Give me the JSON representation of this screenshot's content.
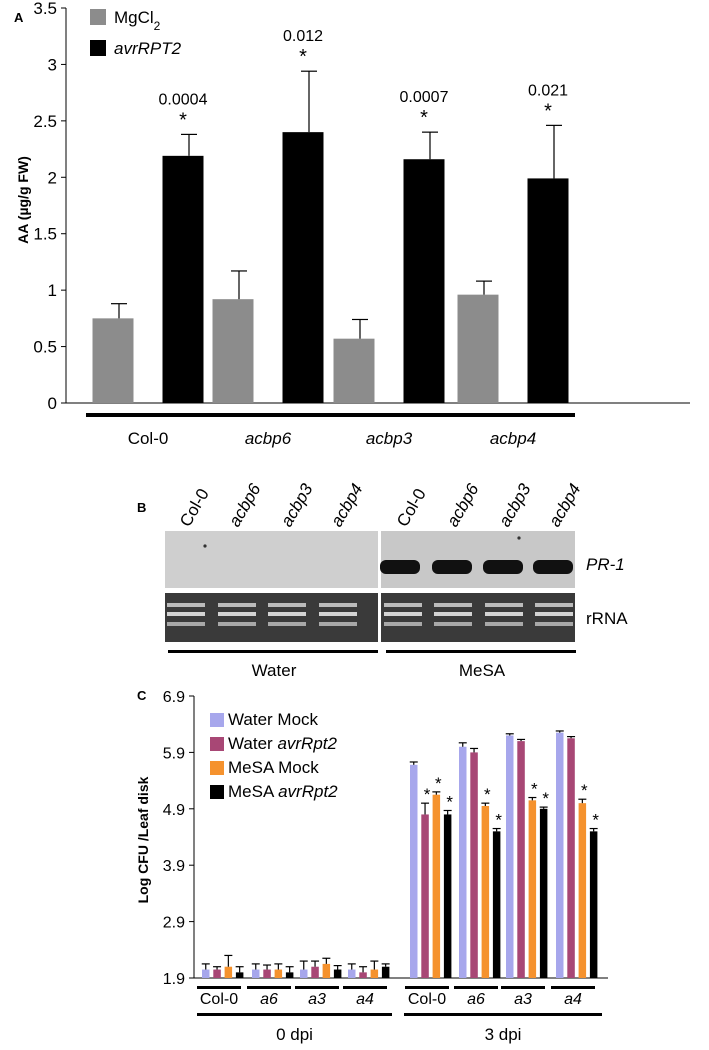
{
  "panels": {
    "A": {
      "label": "A",
      "chart_data": {
        "type": "bar",
        "ylabel": "AA (µg/g FW)",
        "ylim": [
          0,
          3.5
        ],
        "yticks": [
          "0",
          "0.5",
          "1",
          "1.5",
          "2",
          "2.5",
          "3",
          "3.5"
        ],
        "categories": [
          "Col-0",
          "acbp6",
          "acbp3",
          "acbp4"
        ],
        "category_italic": [
          false,
          true,
          true,
          true
        ],
        "series": [
          {
            "name": "MgCl",
            "name_sub": "2",
            "color": "#8c8c8c",
            "values": [
              0.75,
              0.92,
              0.57,
              0.96
            ],
            "errors": [
              0.13,
              0.25,
              0.17,
              0.12
            ]
          },
          {
            "name": "avrRPT2",
            "color": "#000000",
            "values": [
              2.19,
              2.4,
              2.16,
              1.99
            ],
            "errors": [
              0.19,
              0.54,
              0.24,
              0.47
            ]
          }
        ],
        "annotations": [
          {
            "category": 0,
            "pvalue": "0.0004",
            "star": "*"
          },
          {
            "category": 1,
            "pvalue": "0.012",
            "star": "*"
          },
          {
            "category": 2,
            "pvalue": "0.0007",
            "star": "*"
          },
          {
            "category": 3,
            "pvalue": "0.021",
            "star": "*"
          }
        ],
        "legend_position": "top-left"
      }
    },
    "B": {
      "label": "B",
      "lanes": [
        "Col-0",
        "acbp6",
        "acbp3",
        "acbp4",
        "Col-0",
        "acbp6",
        "acbp3",
        "acbp4"
      ],
      "lane_italic": [
        false,
        true,
        true,
        true,
        false,
        true,
        true,
        true
      ],
      "rows": [
        "PR-1",
        "rRNA"
      ],
      "groups": [
        "Water",
        "MeSA"
      ]
    },
    "C": {
      "label": "C",
      "chart_data": {
        "type": "bar",
        "ylabel": "Log CFU /Leaf disk",
        "ylim": [
          1.9,
          6.9
        ],
        "yticks": [
          "1.9",
          "2.9",
          "3.9",
          "4.9",
          "5.9",
          "6.9"
        ],
        "categories": [
          "Col-0",
          "a6",
          "a3",
          "a4",
          "Col-0",
          "a6",
          "a3",
          "a4"
        ],
        "category_italic": [
          false,
          true,
          true,
          true,
          false,
          true,
          true,
          true
        ],
        "groups": [
          {
            "label": "0 dpi",
            "categories": [
              0,
              1,
              2,
              3
            ]
          },
          {
            "label": "3 dpi",
            "categories": [
              4,
              5,
              6,
              7
            ]
          }
        ],
        "series": [
          {
            "name": "Water Mock",
            "color": "#a7a7ec",
            "values": [
              2.05,
              2.05,
              2.05,
              2.05,
              5.68,
              6.0,
              6.2,
              6.25
            ],
            "errors": [
              0.1,
              0.1,
              0.15,
              0.1,
              0.05,
              0.07,
              0.03,
              0.03
            ]
          },
          {
            "name": "Water ",
            "name_italic": "avrRpt2",
            "color": "#a84775",
            "values": [
              2.05,
              2.05,
              2.1,
              2.0,
              4.8,
              5.9,
              6.1,
              6.15
            ],
            "errors": [
              0.05,
              0.08,
              0.1,
              0.1,
              0.2,
              0.07,
              0.03,
              0.03
            ]
          },
          {
            "name": "MeSA Mock",
            "color": "#f5922e",
            "values": [
              2.1,
              2.05,
              2.15,
              2.05,
              5.15,
              4.95,
              5.05,
              5.0
            ],
            "errors": [
              0.2,
              0.1,
              0.1,
              0.15,
              0.05,
              0.05,
              0.05,
              0.07
            ]
          },
          {
            "name": "MeSA ",
            "name_italic": "avrRpt2",
            "color": "#000000",
            "values": [
              2.0,
              2.0,
              2.05,
              2.1,
              4.8,
              4.5,
              4.9,
              4.5
            ],
            "errors": [
              0.1,
              0.1,
              0.07,
              0.05,
              0.07,
              0.05,
              0.03,
              0.05
            ]
          }
        ],
        "stars": [
          {
            "category": 4,
            "series": 1,
            "text": "*"
          },
          {
            "category": 4,
            "series": 2,
            "text": "*"
          },
          {
            "category": 4,
            "series": 3,
            "text": "*"
          },
          {
            "category": 5,
            "series": 2,
            "text": "*"
          },
          {
            "category": 5,
            "series": 3,
            "text": "*"
          },
          {
            "category": 6,
            "series": 2,
            "text": "*"
          },
          {
            "category": 6,
            "series": 3,
            "text": "*"
          },
          {
            "category": 7,
            "series": 2,
            "text": "*"
          },
          {
            "category": 7,
            "series": 3,
            "text": "*"
          }
        ],
        "legend_position": "top-left"
      }
    }
  }
}
